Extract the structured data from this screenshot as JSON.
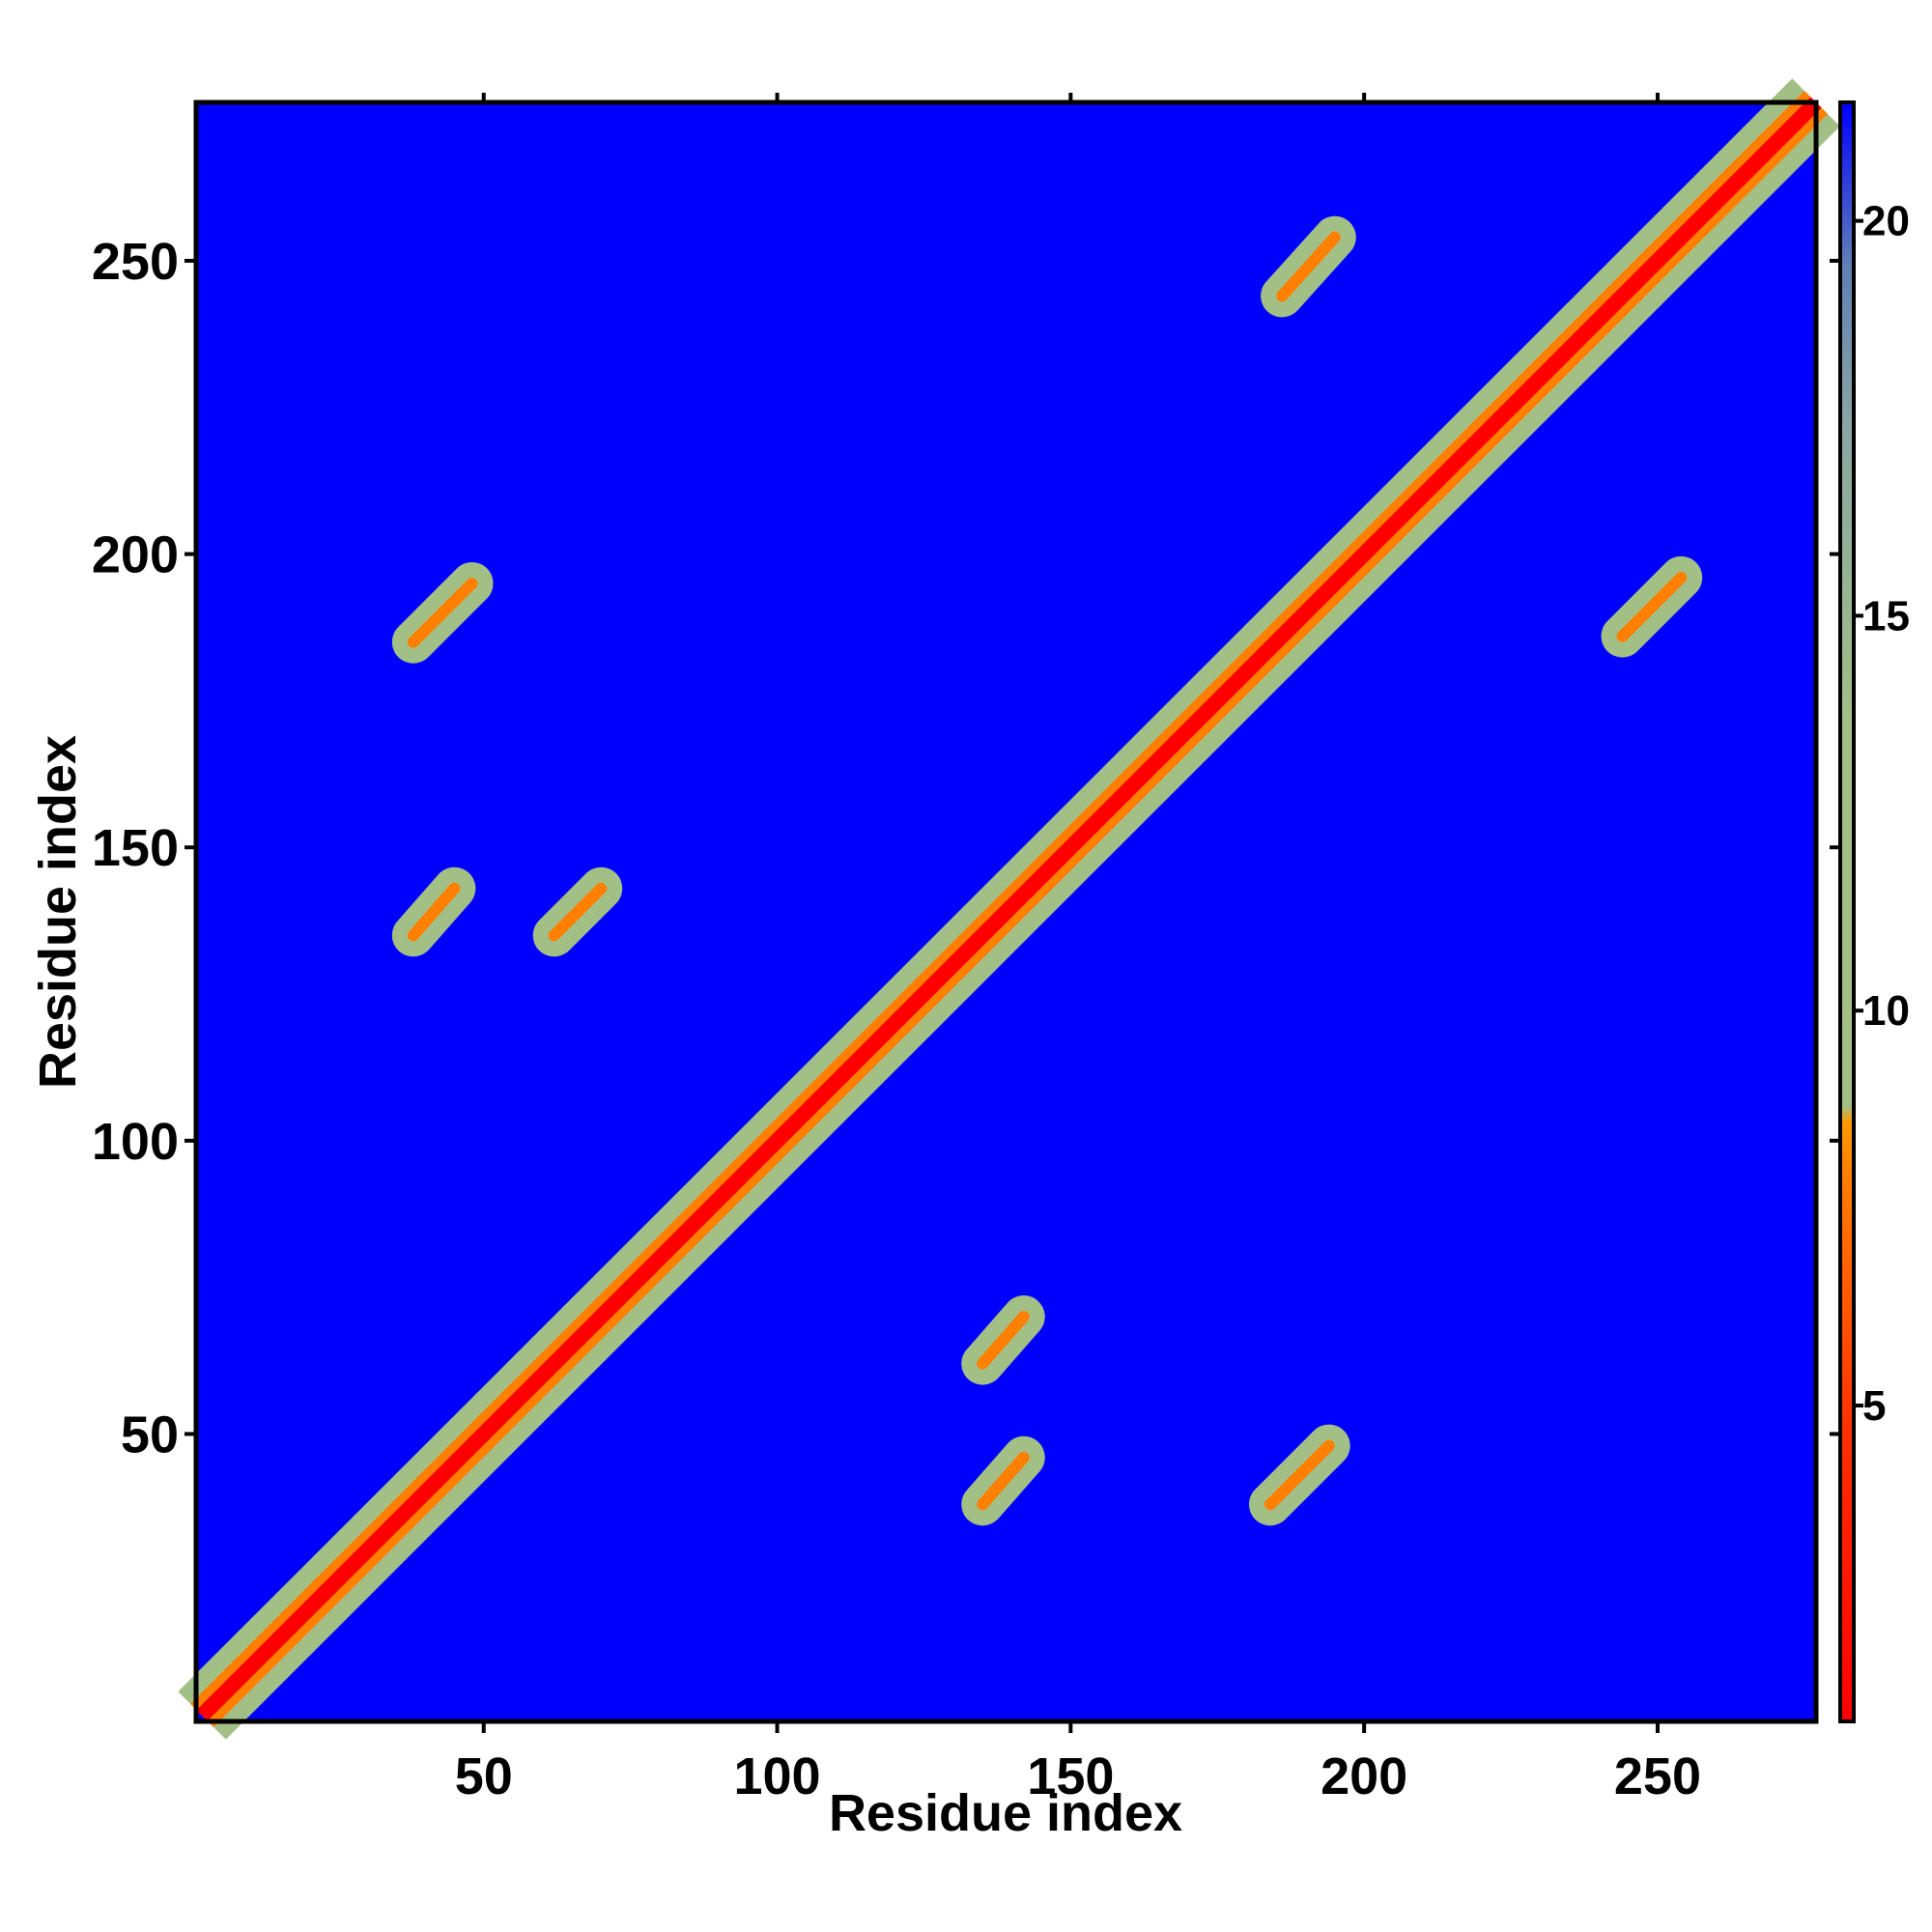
{
  "chart_data": {
    "type": "heatmap",
    "title": "",
    "xlabel": "Residue index",
    "ylabel": "Residue index",
    "n_residues": 277,
    "xlim": [
      1,
      277
    ],
    "ylim": [
      1,
      277
    ],
    "x_ticks": [
      50,
      100,
      150,
      200,
      250
    ],
    "y_ticks": [
      50,
      100,
      150,
      200,
      250
    ],
    "colorbar": {
      "range": [
        1,
        21.5
      ],
      "ticks": [
        5,
        10,
        15,
        20
      ],
      "colors": {
        "low": "#ff0000",
        "mid_low": "#ff8000",
        "mid": "#a2bf86",
        "high": "#5f7fb5",
        "max": "#0000ff"
      }
    },
    "background_value": 21.5,
    "contact_bands": [
      {
        "x": [
          2,
          277
        ],
        "y": [
          2,
          277
        ],
        "value": 6,
        "kind": "diagonal"
      },
      {
        "x": [
          38,
          48
        ],
        "y": [
          185,
          195
        ],
        "value": 7
      },
      {
        "x": [
          135,
          142
        ],
        "y": [
          38,
          46
        ],
        "value": 7
      },
      {
        "x": [
          135,
          142
        ],
        "y": [
          62,
          70
        ],
        "value": 7
      },
      {
        "x": [
          38,
          45
        ],
        "y": [
          135,
          143
        ],
        "value": 8
      },
      {
        "x": [
          62,
          70
        ],
        "y": [
          135,
          143
        ],
        "value": 8
      },
      {
        "x": [
          184,
          194
        ],
        "y": [
          38,
          48
        ],
        "value": 7
      },
      {
        "x": [
          186,
          195
        ],
        "y": [
          244,
          254
        ],
        "value": 7
      },
      {
        "x": [
          244,
          254
        ],
        "y": [
          186,
          196
        ],
        "value": 7
      }
    ]
  }
}
